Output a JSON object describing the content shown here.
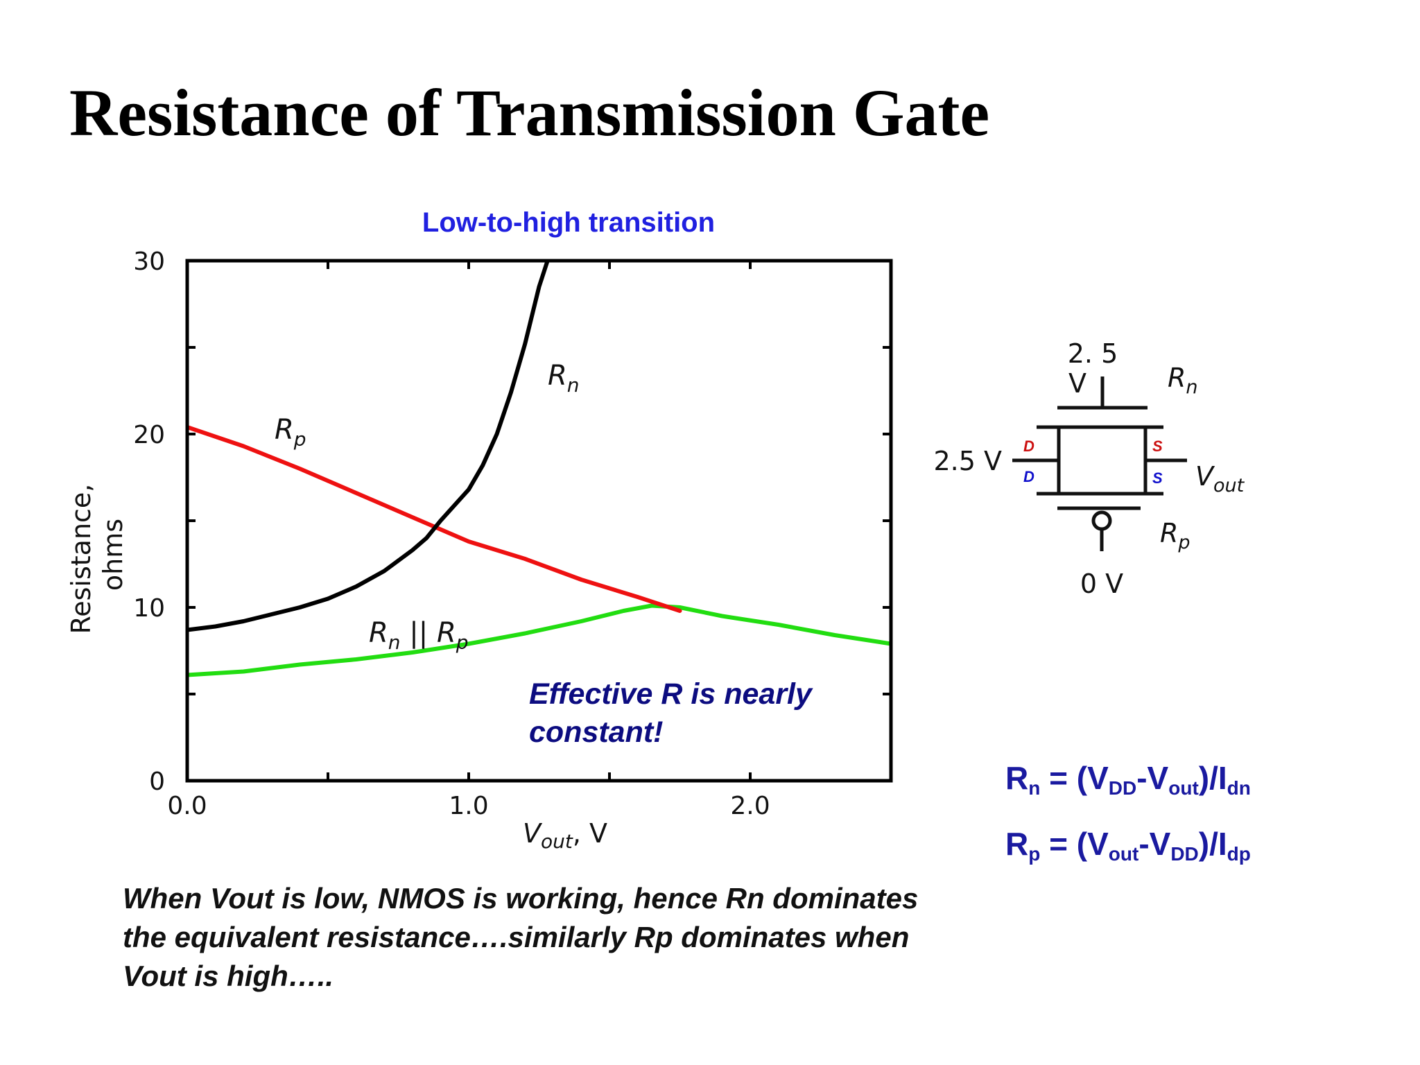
{
  "slide": {
    "title": "Resistance of Transmission Gate",
    "note": "When Vout is low, NMOS is working, hence Rn dominates the equivalent resistance….similarly Rp dominates when Vout is high….."
  },
  "chart_data": {
    "type": "line",
    "title": "Low-to-high transition",
    "xlabel": "Vout, V",
    "ylabel": "Resistance, ohms",
    "xlim": [
      0,
      2.5
    ],
    "ylim": [
      0,
      30
    ],
    "x_ticks": [
      0,
      0.5,
      1.0,
      1.5,
      2.0,
      2.5
    ],
    "x_tick_labels": [
      "0.0",
      "",
      "1.0",
      "",
      "2.0",
      ""
    ],
    "y_ticks": [
      0,
      5,
      10,
      15,
      20,
      25,
      30
    ],
    "y_tick_labels": [
      "0",
      "",
      "10",
      "",
      "20",
      "",
      "30"
    ],
    "grid": false,
    "series": [
      {
        "name": "Rn",
        "color": "#000000",
        "x": [
          0.0,
          0.1,
          0.2,
          0.3,
          0.4,
          0.5,
          0.6,
          0.7,
          0.8,
          0.85,
          0.9,
          0.95,
          1.0,
          1.05,
          1.1,
          1.15,
          1.2,
          1.25,
          1.28
        ],
        "y": [
          8.7,
          8.9,
          9.2,
          9.6,
          10.0,
          10.5,
          11.2,
          12.1,
          13.3,
          14.0,
          15.0,
          15.9,
          16.8,
          18.2,
          20.0,
          22.4,
          25.2,
          28.5,
          30.0
        ]
      },
      {
        "name": "Rp",
        "color": "#ee1111",
        "x": [
          0.0,
          0.2,
          0.4,
          0.6,
          0.8,
          0.9,
          1.0,
          1.2,
          1.4,
          1.6,
          1.75
        ],
        "y": [
          20.4,
          19.3,
          18.0,
          16.6,
          15.2,
          14.5,
          13.8,
          12.8,
          11.6,
          10.6,
          9.8
        ]
      },
      {
        "name": "Rn || Rp",
        "color": "#22dd11",
        "x": [
          0.0,
          0.2,
          0.4,
          0.6,
          0.8,
          1.0,
          1.2,
          1.4,
          1.55,
          1.65,
          1.75,
          1.9,
          2.1,
          2.3,
          2.5
        ],
        "y": [
          6.1,
          6.3,
          6.7,
          7.0,
          7.4,
          7.9,
          8.5,
          9.2,
          9.8,
          10.1,
          10.0,
          9.5,
          9.0,
          8.4,
          7.9
        ]
      }
    ],
    "curve_labels": {
      "rn": {
        "base": "R",
        "sub": "n"
      },
      "rp": {
        "base": "R",
        "sub": "p"
      },
      "rnrp": {
        "base1": "R",
        "sub1": "n",
        "mid": " || ",
        "base2": "R",
        "sub2": "p"
      }
    },
    "annotation_lines": [
      "Effective R is nearly",
      "constant!"
    ]
  },
  "circuit": {
    "gate_top": "2. 5",
    "gate_top_unit": "V",
    "left_voltage": "2.5 V",
    "gate_bottom": "0 V",
    "pin_d": "D",
    "pin_s": "S",
    "rn": {
      "base": "R",
      "sub": "n"
    },
    "rp": {
      "base": "R",
      "sub": "p"
    },
    "vout": {
      "base": "V",
      "sub": "out"
    },
    "colors": {
      "nmos_pins": "#cc1111",
      "pmos_pins": "#1111cc"
    }
  },
  "equations": {
    "rn": {
      "lhs": "R",
      "lhs_sub": "n",
      "eq": " = (V",
      "a_sub": "DD",
      "mid": "-V",
      "b_sub": "out",
      "close": ")/I",
      "i_sub": "dn"
    },
    "rp": {
      "lhs": "R",
      "lhs_sub": "p",
      "eq": " = (V",
      "a_sub": "out",
      "mid": "-V",
      "b_sub": "DD",
      "close": ")/I",
      "i_sub": "dp"
    }
  }
}
